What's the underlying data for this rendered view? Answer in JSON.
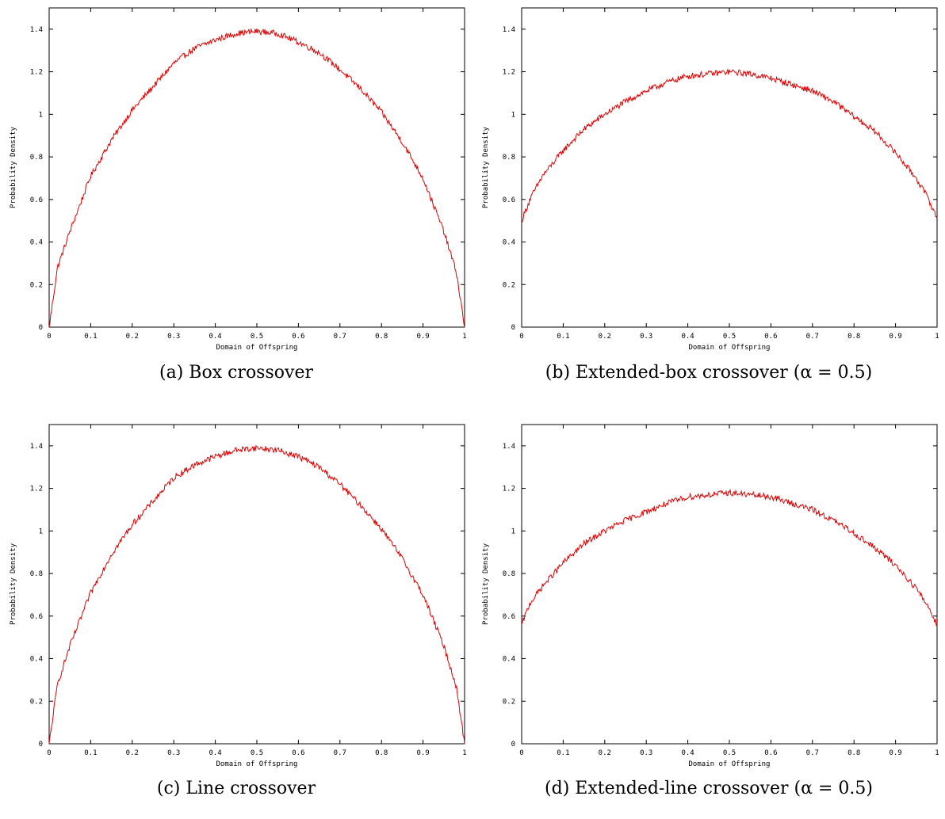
{
  "chart_data": [
    {
      "type": "line",
      "caption": "(a)  Box crossover",
      "xlabel": "Domain of Offspring",
      "ylabel": "Probability Density",
      "xlim": [
        0,
        1
      ],
      "ylim": [
        0,
        1.5
      ],
      "xticks": [
        "0",
        "0.1",
        "0.2",
        "0.3",
        "0.4",
        "0.5",
        "0.6",
        "0.7",
        "0.8",
        "0.9",
        "1"
      ],
      "yticks": [
        "0",
        "0.2",
        "0.4",
        "0.6",
        "0.8",
        "1",
        "1.2",
        "1.4"
      ],
      "grid": false,
      "color": "#e00000",
      "x": [
        0,
        0.02,
        0.05,
        0.1,
        0.15,
        0.2,
        0.25,
        0.3,
        0.35,
        0.4,
        0.45,
        0.5,
        0.55,
        0.6,
        0.65,
        0.7,
        0.75,
        0.8,
        0.85,
        0.9,
        0.95,
        0.98,
        1
      ],
      "y": [
        0,
        0.28,
        0.45,
        0.71,
        0.88,
        1.02,
        1.13,
        1.24,
        1.31,
        1.35,
        1.38,
        1.39,
        1.38,
        1.34,
        1.29,
        1.21,
        1.12,
        1.01,
        0.87,
        0.7,
        0.45,
        0.26,
        0
      ]
    },
    {
      "type": "line",
      "caption": "(b)  Extended-box crossover (α = 0.5)",
      "xlabel": "Domain of Offspring",
      "ylabel": "Probability Density",
      "xlim": [
        0,
        1
      ],
      "ylim": [
        0,
        1.5
      ],
      "xticks": [
        "0",
        "0.1",
        "0.2",
        "0.3",
        "0.4",
        "0.5",
        "0.6",
        "0.7",
        "0.8",
        "0.9",
        "1"
      ],
      "yticks": [
        "0",
        "0.2",
        "0.4",
        "0.6",
        "0.8",
        "1",
        "1.2",
        "1.4"
      ],
      "grid": false,
      "color": "#e00000",
      "x": [
        0,
        0.02,
        0.05,
        0.1,
        0.15,
        0.2,
        0.25,
        0.3,
        0.35,
        0.4,
        0.45,
        0.5,
        0.55,
        0.6,
        0.65,
        0.7,
        0.75,
        0.8,
        0.85,
        0.9,
        0.95,
        0.98,
        1
      ],
      "y": [
        0.5,
        0.6,
        0.71,
        0.83,
        0.93,
        1.0,
        1.06,
        1.11,
        1.15,
        1.18,
        1.19,
        1.2,
        1.19,
        1.17,
        1.14,
        1.11,
        1.06,
        0.99,
        0.92,
        0.82,
        0.7,
        0.6,
        0.51
      ]
    },
    {
      "type": "line",
      "caption": "(c)  Line crossover",
      "xlabel": "Domain of Offspring",
      "ylabel": "Probability Density",
      "xlim": [
        0,
        1
      ],
      "ylim": [
        0,
        1.5
      ],
      "xticks": [
        "0",
        "0.1",
        "0.2",
        "0.3",
        "0.4",
        "0.5",
        "0.6",
        "0.7",
        "0.8",
        "0.9",
        "1"
      ],
      "yticks": [
        "0",
        "0.2",
        "0.4",
        "0.6",
        "0.8",
        "1",
        "1.2",
        "1.4"
      ],
      "grid": false,
      "color": "#e00000",
      "x": [
        0,
        0.02,
        0.05,
        0.1,
        0.15,
        0.2,
        0.25,
        0.3,
        0.35,
        0.4,
        0.45,
        0.5,
        0.55,
        0.6,
        0.65,
        0.7,
        0.75,
        0.8,
        0.85,
        0.9,
        0.95,
        0.98,
        1
      ],
      "y": [
        0,
        0.28,
        0.46,
        0.71,
        0.89,
        1.03,
        1.14,
        1.25,
        1.31,
        1.35,
        1.38,
        1.39,
        1.38,
        1.35,
        1.3,
        1.22,
        1.12,
        1.01,
        0.87,
        0.7,
        0.46,
        0.27,
        0
      ]
    },
    {
      "type": "line",
      "caption": "(d)  Extended-line crossover (α = 0.5)",
      "xlabel": "Domain of Offspring",
      "ylabel": "Probability Density",
      "xlim": [
        0,
        1
      ],
      "ylim": [
        0,
        1.5
      ],
      "xticks": [
        "0",
        "0.1",
        "0.2",
        "0.3",
        "0.4",
        "0.5",
        "0.6",
        "0.7",
        "0.8",
        "0.9",
        "1"
      ],
      "yticks": [
        "0",
        "0.2",
        "0.4",
        "0.6",
        "0.8",
        "1",
        "1.2",
        "1.4"
      ],
      "grid": false,
      "color": "#e00000",
      "x": [
        0,
        0.02,
        0.05,
        0.1,
        0.15,
        0.2,
        0.25,
        0.3,
        0.35,
        0.4,
        0.45,
        0.5,
        0.55,
        0.6,
        0.65,
        0.7,
        0.75,
        0.8,
        0.85,
        0.9,
        0.95,
        0.98,
        1
      ],
      "y": [
        0.56,
        0.66,
        0.74,
        0.85,
        0.94,
        1.0,
        1.05,
        1.09,
        1.13,
        1.16,
        1.17,
        1.18,
        1.17,
        1.16,
        1.13,
        1.1,
        1.05,
        0.99,
        0.92,
        0.84,
        0.73,
        0.64,
        0.56
      ]
    }
  ]
}
